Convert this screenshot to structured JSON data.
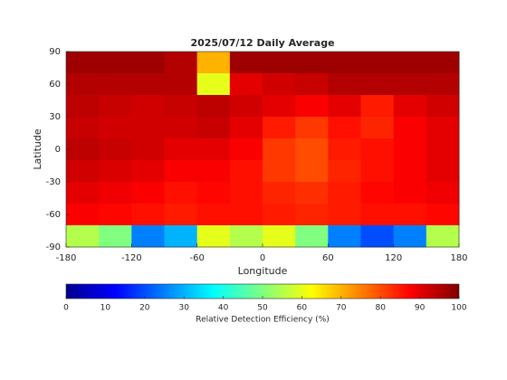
{
  "chart_data": {
    "type": "heatmap",
    "title": "2025/07/12 Daily Average",
    "x_label": "Longitude",
    "y_label": "Latitude",
    "xlim": [
      -180,
      180
    ],
    "xticks": [
      -180,
      -120,
      -60,
      0,
      60,
      120,
      180
    ],
    "ylim": [
      -90,
      90
    ],
    "yticks": [
      -90,
      -60,
      -30,
      0,
      30,
      60,
      90
    ],
    "values": [
      [
        97,
        97,
        97,
        95,
        70,
        97,
        97,
        97,
        97,
        97,
        97,
        97
      ],
      [
        95,
        95,
        95,
        95,
        60,
        90,
        92,
        93,
        95,
        95,
        95,
        95
      ],
      [
        94,
        93,
        92,
        93,
        94,
        92,
        90,
        88,
        90,
        85,
        90,
        92
      ],
      [
        93,
        92,
        92,
        92,
        93,
        90,
        85,
        82,
        86,
        84,
        88,
        90
      ],
      [
        94,
        93,
        92,
        90,
        90,
        88,
        82,
        80,
        85,
        86,
        88,
        90
      ],
      [
        92,
        91,
        90,
        88,
        88,
        86,
        82,
        80,
        84,
        86,
        88,
        90
      ],
      [
        90,
        89,
        88,
        86,
        87,
        86,
        84,
        83,
        85,
        87,
        88,
        89
      ],
      [
        88,
        87,
        86,
        85,
        86,
        86,
        85,
        84,
        85,
        86,
        86,
        87
      ],
      [
        55,
        50,
        25,
        30,
        60,
        55,
        60,
        50,
        25,
        20,
        25,
        55
      ]
    ],
    "colorbar": {
      "label": "Relative Detection Efficiency (%)",
      "lim": [
        0,
        100
      ],
      "ticks": [
        0,
        10,
        20,
        30,
        40,
        50,
        60,
        70,
        80,
        90,
        100
      ],
      "colormap": "jet"
    }
  }
}
